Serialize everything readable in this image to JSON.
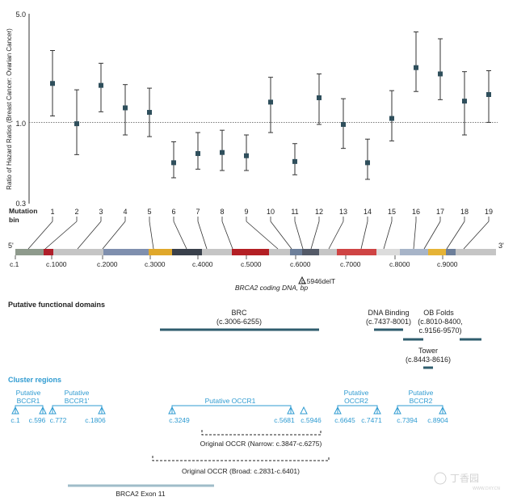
{
  "chart_data": {
    "type": "scatter",
    "ylabel": "Ratio of Hazard Ratios (Breast Cancer: Ovarian Cancer)",
    "yscale": "log",
    "ylim": [
      0.3,
      5.0
    ],
    "yticks": [
      "5.0",
      "1.0",
      "0.3"
    ],
    "reference_line": 1.0,
    "xlabel_title": "Mutation",
    "xlabel_sub": "bin",
    "bins": [
      {
        "bin": "1",
        "value": 1.78,
        "low": 1.1,
        "high": 2.9
      },
      {
        "bin": "2",
        "value": 0.98,
        "low": 0.62,
        "high": 1.62
      },
      {
        "bin": "3",
        "value": 1.73,
        "low": 1.17,
        "high": 2.4
      },
      {
        "bin": "4",
        "value": 1.24,
        "low": 0.83,
        "high": 1.75
      },
      {
        "bin": "5",
        "value": 1.16,
        "low": 0.81,
        "high": 1.66
      },
      {
        "bin": "6",
        "value": 0.55,
        "low": 0.44,
        "high": 0.75
      },
      {
        "bin": "7",
        "value": 0.63,
        "low": 0.5,
        "high": 0.86
      },
      {
        "bin": "8",
        "value": 0.64,
        "low": 0.49,
        "high": 0.89
      },
      {
        "bin": "9",
        "value": 0.61,
        "low": 0.49,
        "high": 0.83
      },
      {
        "bin": "10",
        "value": 1.35,
        "low": 0.86,
        "high": 1.95
      },
      {
        "bin": "11",
        "value": 0.56,
        "low": 0.46,
        "high": 0.73
      },
      {
        "bin": "12",
        "value": 1.44,
        "low": 0.97,
        "high": 2.05
      },
      {
        "bin": "13",
        "value": 0.97,
        "low": 0.68,
        "high": 1.42
      },
      {
        "bin": "14",
        "value": 0.55,
        "low": 0.43,
        "high": 0.78
      },
      {
        "bin": "15",
        "value": 1.06,
        "low": 0.76,
        "high": 1.6
      },
      {
        "bin": "16",
        "value": 2.25,
        "low": 1.58,
        "high": 3.82
      },
      {
        "bin": "17",
        "value": 2.05,
        "low": 1.4,
        "high": 3.45
      },
      {
        "bin": "18",
        "value": 1.37,
        "low": 0.83,
        "high": 2.12
      },
      {
        "bin": "19",
        "value": 1.51,
        "low": 1.0,
        "high": 2.15
      }
    ]
  },
  "gene_bar": {
    "five_prime": "5'",
    "three_prime": "3'",
    "ticks": [
      "c.1",
      "c.1000",
      "c.2000",
      "c.3000",
      "c.4000",
      "c.5000",
      "c.6000",
      "c.7000",
      "c.8000",
      "c.9000"
    ],
    "marker_label": "c.5946delT",
    "axis_title": "BRCA2 coding DNA, bp",
    "segment_colors": [
      "#8e9a8c",
      "#b01f2a",
      "#c5c5c5",
      "#7f8fae",
      "#e0a82b",
      "#39404b",
      "#c5c5c5",
      "#b31f24",
      "#c5c5c5",
      "#6d7f9a",
      "#545a68",
      "#c5c5c5",
      "#cf4444",
      "#dcdcdc",
      "#a7b4c8",
      "#e5b336",
      "#6d7f9a",
      "#c5c5c5"
    ]
  },
  "domains": {
    "title": "Putative functional domains",
    "brc_name": "BRC",
    "brc_range": "(c.3006-6255)",
    "dna_name": "DNA Binding",
    "dna_range": "(c.7437-8001)",
    "ob_name": "OB Folds",
    "ob_range1": "(c.8010-8400,",
    "ob_range2": "c.9156-9570)",
    "tower_name": "Tower",
    "tower_range": "(c.8443-8616)",
    "color": "#2f5d6e"
  },
  "clusters": {
    "title": "Cluster regions",
    "color": "#2f9bd1",
    "bccr1_l1": "Putative",
    "bccr1_l2": "BCCR1",
    "bccr1p_l1": "Putative",
    "bccr1p_l2": "BCCR1'",
    "occr1": "Putative OCCR1",
    "occr2_l1": "Putative",
    "occr2_l2": "OCCR2",
    "bccr2_l1": "Putative",
    "bccr2_l2": "BCCR2",
    "positions": [
      "c.1",
      "c.596",
      "c.772",
      "c.1806",
      "c.3249",
      "c.5681",
      "c.5946",
      "c.6645",
      "c.7471",
      "c.7394",
      "c.8904"
    ],
    "narrow": "Original OCCR (Narrow: c.3847-c.6275)",
    "broad": "Original OCCR (Broad: c.2831-c.6401)",
    "exon": "BRCA2 Exon 11",
    "exon_color": "#9fbcc9"
  },
  "watermark": {
    "name": "丁香园",
    "url": "WWW.DXY.CN"
  }
}
